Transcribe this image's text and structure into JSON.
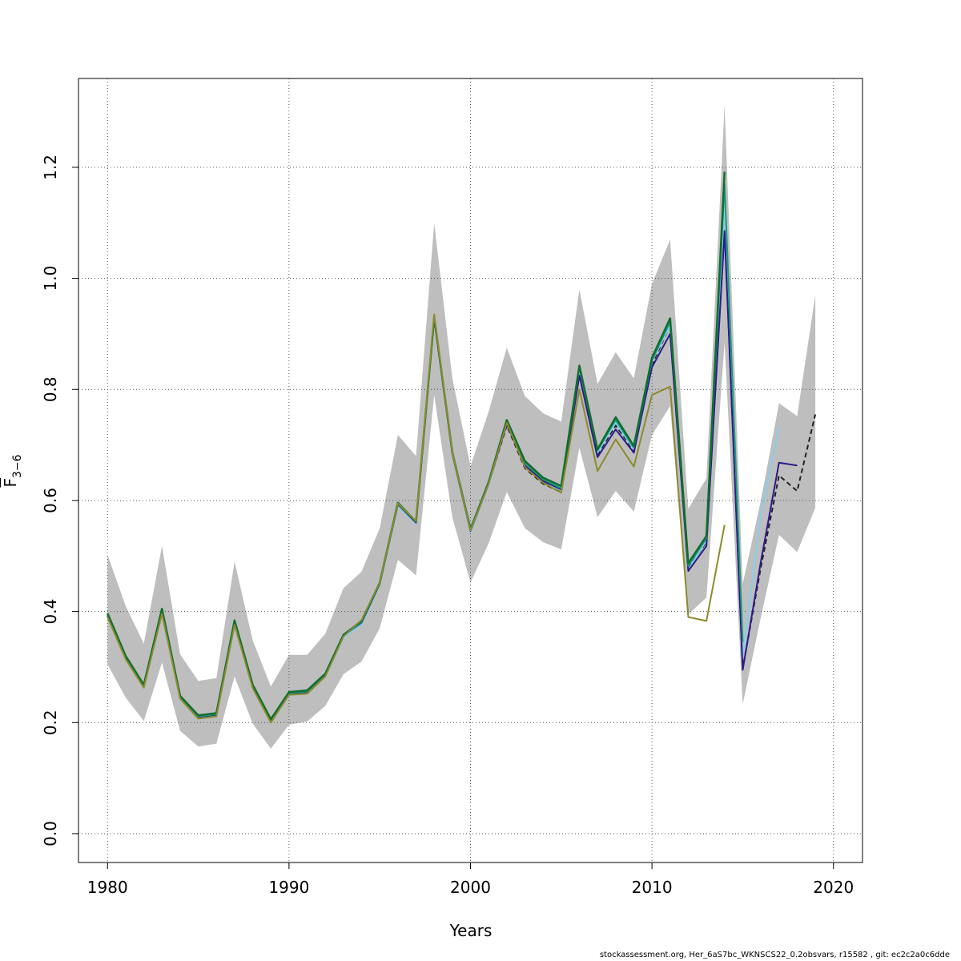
{
  "chart_data": {
    "type": "line",
    "title": "",
    "xlabel": "Years",
    "ylabel": {
      "main": "F",
      "sub": "3−6"
    },
    "xlim": [
      1978.4,
      2021.6
    ],
    "ylim": [
      -0.052,
      1.36
    ],
    "xticks": [
      1980,
      1990,
      2000,
      2010,
      2020
    ],
    "xtick_labels": [
      "1980",
      "1990",
      "2000",
      "2010",
      "2020"
    ],
    "yticks": [
      0.0,
      0.2,
      0.4,
      0.6,
      0.8,
      1.0,
      1.2
    ],
    "ytick_labels": [
      "0.0",
      "0.2",
      "0.4",
      "0.6",
      "0.8",
      "1.0",
      "1.2"
    ],
    "grid": true,
    "confidence_band": {
      "color": "#bebebe",
      "x": [
        1980,
        1981,
        1982,
        1983,
        1984,
        1985,
        1986,
        1987,
        1988,
        1989,
        1990,
        1991,
        1992,
        1993,
        1994,
        1995,
        1996,
        1997,
        1998,
        1999,
        2000,
        2001,
        2002,
        2003,
        2004,
        2005,
        2006,
        2007,
        2008,
        2009,
        2010,
        2011,
        2012,
        2013,
        2014,
        2015,
        2016,
        2017,
        2018,
        2019
      ],
      "lower": [
        0.305,
        0.245,
        0.203,
        0.308,
        0.185,
        0.157,
        0.162,
        0.283,
        0.198,
        0.153,
        0.196,
        0.202,
        0.23,
        0.287,
        0.31,
        0.37,
        0.493,
        0.465,
        0.79,
        0.57,
        0.452,
        0.523,
        0.615,
        0.55,
        0.525,
        0.512,
        0.695,
        0.57,
        0.617,
        0.58,
        0.718,
        0.77,
        0.395,
        0.425,
        0.885,
        0.233,
        0.39,
        0.538,
        0.507,
        0.587
      ],
      "upper": [
        0.502,
        0.41,
        0.342,
        0.518,
        0.323,
        0.275,
        0.28,
        0.49,
        0.348,
        0.265,
        0.322,
        0.322,
        0.36,
        0.442,
        0.472,
        0.55,
        0.718,
        0.68,
        1.1,
        0.82,
        0.662,
        0.76,
        0.875,
        0.788,
        0.757,
        0.742,
        0.98,
        0.81,
        0.867,
        0.82,
        0.99,
        1.07,
        0.585,
        0.64,
        1.312,
        0.45,
        0.6,
        0.775,
        0.752,
        0.97
      ]
    },
    "series": [
      {
        "color": "#222222",
        "dashed": true,
        "width": 2,
        "x": [
          1980,
          1981,
          1982,
          1983,
          1984,
          1985,
          1986,
          1987,
          1988,
          1989,
          1990,
          1991,
          1992,
          1993,
          1994,
          1995,
          1996,
          1997,
          1998,
          1999,
          2000,
          2001,
          2002,
          2003,
          2004,
          2005,
          2006,
          2007,
          2008,
          2009,
          2010,
          2011,
          2012,
          2013,
          2014,
          2015,
          2016,
          2017,
          2018,
          2019
        ],
        "y": [
          0.393,
          0.317,
          0.265,
          0.402,
          0.245,
          0.21,
          0.214,
          0.38,
          0.265,
          0.203,
          0.252,
          0.255,
          0.285,
          0.357,
          0.38,
          0.45,
          0.593,
          0.56,
          0.93,
          0.685,
          0.545,
          0.63,
          0.735,
          0.658,
          0.63,
          0.615,
          0.835,
          0.683,
          0.735,
          0.69,
          0.845,
          0.915,
          0.478,
          0.525,
          1.09,
          0.297,
          0.48,
          0.645,
          0.617,
          0.755
        ]
      },
      {
        "color": "#87ceeb",
        "dashed": false,
        "width": 2,
        "x": [
          1980,
          1981,
          1982,
          1983,
          1984,
          1985,
          1986,
          1987,
          1988,
          1989,
          1990,
          1991,
          1992,
          1993,
          1994,
          1995,
          1996,
          1997,
          1998,
          1999,
          2000,
          2001,
          2002,
          2003,
          2004,
          2005,
          2006,
          2007,
          2008,
          2009,
          2010,
          2011,
          2012,
          2013,
          2014,
          2015,
          2016,
          2017
        ],
        "y": [
          0.393,
          0.317,
          0.265,
          0.402,
          0.245,
          0.21,
          0.214,
          0.38,
          0.265,
          0.203,
          0.25,
          0.252,
          0.283,
          0.353,
          0.377,
          0.448,
          0.59,
          0.558,
          0.928,
          0.685,
          0.543,
          0.628,
          0.74,
          0.664,
          0.635,
          0.618,
          0.836,
          0.686,
          0.74,
          0.692,
          0.85,
          0.915,
          0.475,
          0.528,
          1.12,
          0.32,
          0.575,
          0.732
        ]
      },
      {
        "color": "#2e1a8a",
        "dashed": false,
        "width": 2,
        "x": [
          1980,
          1981,
          1982,
          1983,
          1984,
          1985,
          1986,
          1987,
          1988,
          1989,
          1990,
          1991,
          1992,
          1993,
          1994,
          1995,
          1996,
          1997,
          1998,
          1999,
          2000,
          2001,
          2002,
          2003,
          2004,
          2005,
          2006,
          2007,
          2008,
          2009,
          2010,
          2011,
          2012,
          2013,
          2014,
          2015,
          2016,
          2017,
          2018
        ],
        "y": [
          0.393,
          0.317,
          0.265,
          0.403,
          0.245,
          0.21,
          0.214,
          0.38,
          0.265,
          0.203,
          0.252,
          0.255,
          0.285,
          0.357,
          0.38,
          0.45,
          0.593,
          0.56,
          0.93,
          0.685,
          0.545,
          0.63,
          0.738,
          0.663,
          0.635,
          0.62,
          0.825,
          0.678,
          0.728,
          0.686,
          0.84,
          0.9,
          0.473,
          0.518,
          1.085,
          0.295,
          0.49,
          0.668,
          0.663
        ]
      },
      {
        "color": "#1a9a7a",
        "dashed": false,
        "width": 2,
        "x": [
          1980,
          1981,
          1982,
          1983,
          1984,
          1985,
          1986,
          1987,
          1988,
          1989,
          1990,
          1991,
          1992,
          1993,
          1994,
          1995,
          1996,
          1997,
          1998,
          1999,
          2000,
          2001,
          2002,
          2003,
          2004,
          2005,
          2006,
          2007,
          2008,
          2009,
          2010,
          2011,
          2012,
          2013,
          2014,
          2015
        ],
        "y": [
          0.395,
          0.318,
          0.266,
          0.403,
          0.246,
          0.211,
          0.215,
          0.382,
          0.266,
          0.204,
          0.253,
          0.256,
          0.286,
          0.357,
          0.381,
          0.451,
          0.594,
          0.561,
          0.93,
          0.686,
          0.546,
          0.631,
          0.742,
          0.668,
          0.638,
          0.622,
          0.84,
          0.69,
          0.745,
          0.695,
          0.852,
          0.922,
          0.482,
          0.532,
          1.17,
          0.345
        ]
      },
      {
        "color": "#0f6e2e",
        "dashed": false,
        "width": 2.5,
        "x": [
          1980,
          1981,
          1982,
          1983,
          1984,
          1985,
          1986,
          1987,
          1988,
          1989,
          1990,
          1991,
          1992,
          1993,
          1994,
          1995,
          1996,
          1997,
          1998,
          1999,
          2000,
          2001,
          2002,
          2003,
          2004,
          2005,
          2006,
          2007,
          2008,
          2009,
          2010,
          2011,
          2012,
          2013,
          2014
        ],
        "y": [
          0.397,
          0.32,
          0.268,
          0.405,
          0.248,
          0.213,
          0.217,
          0.384,
          0.268,
          0.206,
          0.255,
          0.258,
          0.288,
          0.358,
          0.383,
          0.452,
          0.596,
          0.562,
          0.93,
          0.687,
          0.548,
          0.633,
          0.745,
          0.671,
          0.641,
          0.626,
          0.843,
          0.692,
          0.75,
          0.698,
          0.857,
          0.928,
          0.487,
          0.536,
          1.192
        ]
      },
      {
        "color": "#8b8b2e",
        "dashed": false,
        "width": 2,
        "x": [
          1980,
          1981,
          1982,
          1983,
          1984,
          1985,
          1986,
          1987,
          1988,
          1989,
          1990,
          1991,
          1992,
          1993,
          1994,
          1995,
          1996,
          1997,
          1998,
          1999,
          2000,
          2001,
          2002,
          2003,
          2004,
          2005,
          2006,
          2007,
          2008,
          2009,
          2010,
          2011,
          2012,
          2013,
          2014
        ],
        "y": [
          0.39,
          0.314,
          0.263,
          0.396,
          0.243,
          0.207,
          0.211,
          0.376,
          0.262,
          0.2,
          0.25,
          0.252,
          0.283,
          0.355,
          0.385,
          0.452,
          0.595,
          0.563,
          0.935,
          0.687,
          0.546,
          0.63,
          0.74,
          0.66,
          0.632,
          0.614,
          0.8,
          0.653,
          0.71,
          0.661,
          0.79,
          0.805,
          0.39,
          0.383,
          0.556
        ]
      }
    ]
  },
  "footer_text": "stockassessment.org, Her_6aS7bc_WKNSCS22_0.2obsvars, r15582 , git: ec2c2a0c6dde"
}
